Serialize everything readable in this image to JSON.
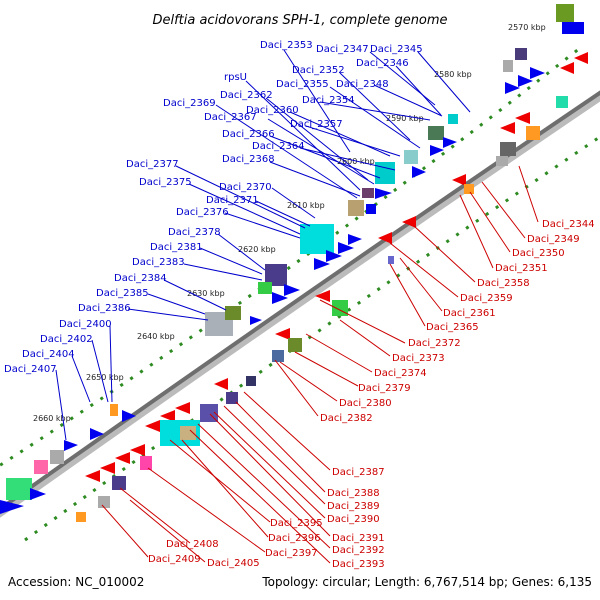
{
  "title": "Delftia acidovorans SPH-1, complete genome",
  "footer": {
    "accession": "Accession: NC_010002",
    "stats": "Topology: circular; Length: 6,767,514 bp; Genes: 6,135"
  },
  "ticks": [
    "2570 kbp",
    "2580 kbp",
    "2590 kbp",
    "2600 kbp",
    "2610 kbp",
    "2620 kbp",
    "2630 kbp",
    "2640 kbp",
    "2650 kbp",
    "2660 kbp"
  ],
  "blue_labels": [
    "Daci_2353",
    "Daci_2347",
    "Daci_2345",
    "Daci_2346",
    "rpsU",
    "Daci_2352",
    "Daci_2355",
    "Daci_2348",
    "Daci_2362",
    "Daci_2369",
    "Daci_2360",
    "Daci_2354",
    "Daci_2367",
    "Daci_2357",
    "Daci_2366",
    "Daci_2364",
    "Daci_2368",
    "Daci_2377",
    "Daci_2375",
    "Daci_2370",
    "Daci_2371",
    "Daci_2376",
    "Daci_2378",
    "Daci_2381",
    "Daci_2383",
    "Daci_2384",
    "Daci_2385",
    "Daci_2386",
    "Daci_2400",
    "Daci_2402",
    "Daci_2404",
    "Daci_2407"
  ],
  "red_labels": [
    "Daci_2344",
    "Daci_2349",
    "Daci_2350",
    "Daci_2351",
    "Daci_2358",
    "Daci_2359",
    "Daci_2361",
    "Daci_2365",
    "Daci_2372",
    "Daci_2373",
    "Daci_2374",
    "Daci_2379",
    "Daci_2380",
    "Daci_2382",
    "Daci_2387",
    "Daci_2388",
    "Daci_2389",
    "Daci_2390",
    "Daci_2391",
    "Daci_2392",
    "Daci_2393",
    "Daci_2395",
    "Daci_2396",
    "Daci_2397",
    "Daci_2408",
    "Daci_2409",
    "Daci_2405"
  ],
  "colors": {
    "forward": "#0000ee",
    "reverse": "#ee0000",
    "backbone": "#888888",
    "tick_dash": "#2e8b22"
  }
}
